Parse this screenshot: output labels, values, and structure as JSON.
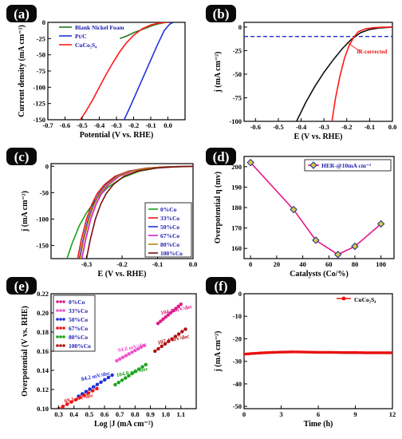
{
  "chart_data": [
    {
      "id": "a",
      "panel_label": "(a)",
      "type": "line",
      "xlabel": "Potential (V vs. RHE)",
      "ylabel": "Current density (mA cm⁻²)",
      "xlim": [
        -0.7,
        0.1
      ],
      "ylim": [
        -150,
        0
      ],
      "xticks": [
        -0.7,
        -0.6,
        -0.5,
        -0.4,
        -0.3,
        -0.2,
        -0.1,
        0.0
      ],
      "xtick_labels": [
        "-0.7",
        "-0.6",
        "-0.5",
        "-0.4",
        "-0.3",
        "-0.2",
        "-0.1",
        "0.0"
      ],
      "yticks": [
        -150,
        -125,
        -100,
        -75,
        -50,
        -25,
        0
      ],
      "ytick_labels": [
        "-150",
        "-125",
        "-100",
        "-75",
        "-50",
        "-25",
        "0"
      ],
      "legend_position": "top-left",
      "series": [
        {
          "name": "Blank Nickel Foam",
          "color": "#1f7a1f",
          "x": [
            -0.28,
            -0.24,
            -0.2,
            -0.16,
            -0.12,
            -0.08,
            -0.05,
            -0.02
          ],
          "y": [
            -25,
            -21,
            -16,
            -12,
            -8,
            -4,
            -2,
            -0.5
          ]
        },
        {
          "name": "Pt/C",
          "color": "#2233dd",
          "x": [
            -0.255,
            -0.22,
            -0.18,
            -0.14,
            -0.1,
            -0.06,
            -0.02,
            0.01,
            0.03
          ],
          "y": [
            -150,
            -130,
            -106,
            -82,
            -58,
            -34,
            -12,
            -3,
            0
          ]
        },
        {
          "name": "CuCo₂S₄",
          "color": "#ff1a1a",
          "x": [
            -0.51,
            -0.48,
            -0.44,
            -0.4,
            -0.36,
            -0.32,
            -0.28,
            -0.24,
            -0.2,
            -0.15,
            -0.1,
            -0.05,
            0.0
          ],
          "y": [
            -150,
            -138,
            -120,
            -100,
            -80,
            -62,
            -45,
            -31,
            -20,
            -10,
            -4,
            -1,
            0
          ]
        }
      ]
    },
    {
      "id": "b",
      "panel_label": "(b)",
      "type": "line",
      "xlabel": "E (V vs. RHE)",
      "ylabel": "j (mA cm⁻²)",
      "xlim": [
        -0.65,
        0.0
      ],
      "ylim": [
        -100,
        5
      ],
      "xticks": [
        -0.6,
        -0.5,
        -0.4,
        -0.3,
        -0.2,
        -0.1,
        0.0
      ],
      "xtick_labels": [
        "-0.6",
        "-0.5",
        "-0.4",
        "-0.3",
        "-0.2",
        "-0.1",
        "0.0"
      ],
      "yticks": [
        -100,
        -75,
        -50,
        -25,
        0
      ],
      "ytick_labels": [
        "-100",
        "-75",
        "-50",
        "-25",
        "0"
      ],
      "reference_line": {
        "y": -10,
        "color": "#1a2fd6"
      },
      "annotation": {
        "text": "iR-corrected",
        "color": "#e81010"
      },
      "series": [
        {
          "color": "#111111",
          "x": [
            -0.42,
            -0.38,
            -0.34,
            -0.3,
            -0.26,
            -0.22,
            -0.18,
            -0.14,
            -0.1,
            -0.06,
            -0.02,
            0.0
          ],
          "y": [
            -100,
            -80,
            -63,
            -48,
            -35,
            -23,
            -13,
            -6,
            -2.5,
            -1,
            -0.3,
            0
          ]
        },
        {
          "color": "#ff1a1a",
          "x": [
            -0.265,
            -0.25,
            -0.23,
            -0.21,
            -0.19,
            -0.17,
            -0.15,
            -0.12,
            -0.08,
            -0.04,
            0.0
          ],
          "y": [
            -100,
            -76,
            -52,
            -33,
            -20,
            -11,
            -5,
            -2,
            -0.6,
            -0.2,
            0
          ]
        }
      ]
    },
    {
      "id": "c",
      "panel_label": "(c)",
      "type": "line",
      "xlabel": "E (V vs. RHE)",
      "ylabel": "j (mA cm⁻²)",
      "xlim": [
        -0.4,
        0.0
      ],
      "ylim": [
        -175,
        5
      ],
      "xticks": [
        -0.3,
        -0.2,
        -0.1,
        0.0
      ],
      "xtick_labels": [
        "-0.3",
        "-0.2",
        "-0.1",
        "0.0"
      ],
      "yticks": [
        -150,
        -100,
        -50,
        0
      ],
      "ytick_labels": [
        "-150",
        "-100",
        "-50",
        "0"
      ],
      "legend_position": "bottom-right",
      "series": [
        {
          "name": "0%Co",
          "color": "#1aa31a",
          "x": [
            -0.355,
            -0.34,
            -0.32,
            -0.3,
            -0.27,
            -0.24,
            -0.2,
            -0.15,
            -0.1,
            -0.05,
            0.0
          ],
          "y": [
            -175,
            -145,
            -112,
            -88,
            -60,
            -40,
            -22,
            -9,
            -3,
            -1,
            0
          ]
        },
        {
          "name": "33%Co",
          "color": "#ee1111",
          "x": [
            -0.325,
            -0.315,
            -0.3,
            -0.285,
            -0.27,
            -0.25,
            -0.22,
            -0.18,
            -0.13,
            -0.08,
            -0.03,
            0.0
          ],
          "y": [
            -175,
            -140,
            -100,
            -72,
            -52,
            -35,
            -19,
            -9,
            -3.5,
            -1.2,
            -0.3,
            0
          ]
        },
        {
          "name": "50%Co",
          "color": "#1f2fd6",
          "x": [
            -0.32,
            -0.31,
            -0.295,
            -0.28,
            -0.265,
            -0.245,
            -0.215,
            -0.175,
            -0.125,
            -0.075,
            -0.025,
            0.0
          ],
          "y": [
            -175,
            -140,
            -100,
            -72,
            -52,
            -35,
            -19,
            -9,
            -3.5,
            -1.2,
            -0.3,
            0
          ]
        },
        {
          "name": "67%Co",
          "color": "#cc22cc",
          "x": [
            -0.313,
            -0.303,
            -0.288,
            -0.273,
            -0.258,
            -0.238,
            -0.208,
            -0.168,
            -0.118,
            -0.068,
            -0.018,
            0.0
          ],
          "y": [
            -175,
            -140,
            -100,
            -72,
            -52,
            -35,
            -19,
            -9,
            -3.5,
            -1.2,
            -0.3,
            0
          ]
        },
        {
          "name": "80%Co",
          "color": "#b8860b",
          "x": [
            -0.318,
            -0.308,
            -0.293,
            -0.278,
            -0.263,
            -0.243,
            -0.213,
            -0.173,
            -0.123,
            -0.073,
            -0.023,
            0.0
          ],
          "y": [
            -175,
            -140,
            -100,
            -72,
            -52,
            -35,
            -19,
            -9,
            -3.5,
            -1.2,
            -0.3,
            0
          ]
        },
        {
          "name": "100%Co",
          "color": "#7a1010",
          "x": [
            -0.3,
            -0.29,
            -0.275,
            -0.26,
            -0.245,
            -0.225,
            -0.195,
            -0.155,
            -0.105,
            -0.055,
            -0.01,
            0.0
          ],
          "y": [
            -175,
            -140,
            -100,
            -72,
            -52,
            -35,
            -19,
            -9,
            -3.5,
            -1.2,
            -0.3,
            0
          ]
        }
      ]
    },
    {
      "id": "d",
      "panel_label": "(d)",
      "type": "line",
      "xlabel": "Catalysts (Co/%)",
      "ylabel": "Overpotential η (mv)",
      "xlim": [
        -5,
        110
      ],
      "ylim": [
        155,
        205
      ],
      "xticks": [
        0,
        20,
        40,
        60,
        80,
        100
      ],
      "xtick_labels": [
        "0",
        "20",
        "40",
        "60",
        "80",
        "100"
      ],
      "yticks": [
        160,
        170,
        180,
        190,
        200
      ],
      "ytick_labels": [
        "160",
        "170",
        "180",
        "190",
        "200"
      ],
      "legend_position": "top-right",
      "series": [
        {
          "name": "HER-@10mA cm⁻²",
          "color": "#e6198a",
          "marker_color": "#1a2a8a",
          "x": [
            0,
            33,
            50,
            67,
            80,
            100
          ],
          "y": [
            202,
            179,
            164,
            157,
            161,
            172
          ]
        }
      ]
    },
    {
      "id": "e",
      "panel_label": "(e)",
      "type": "scatter",
      "xlabel": "Log |J (mA cm⁻²)",
      "ylabel": "Overpotential (V vs. RHE)",
      "xlim": [
        0.25,
        1.2
      ],
      "ylim": [
        0.1,
        0.22
      ],
      "xticks": [
        0.3,
        0.4,
        0.5,
        0.6,
        0.7,
        0.8,
        0.9,
        1.0,
        1.1
      ],
      "xtick_labels": [
        "0.3",
        "0.4",
        "0.5",
        "0.6",
        "0.7",
        "0.8",
        "0.9",
        "1.0",
        "1.1"
      ],
      "yticks": [
        0.1,
        0.12,
        0.14,
        0.16,
        0.18,
        0.2,
        0.22
      ],
      "ytick_labels": [
        "0.10",
        "0.12",
        "0.14",
        "0.16",
        "0.18",
        "0.20",
        "0.22"
      ],
      "legend_position": "top-left",
      "series": [
        {
          "name": "0%Co",
          "color": "#e01a8a",
          "x_range": [
            0.95,
            1.1
          ],
          "y_range": [
            0.189,
            0.209
          ],
          "slope_label": "104.4 mV/dec"
        },
        {
          "name": "33%Co",
          "color": "#ee55cc",
          "x_range": [
            0.68,
            0.86
          ],
          "y_range": [
            0.15,
            0.166
          ],
          "slope_label": "94.8 mV/dec"
        },
        {
          "name": "50%Co",
          "color": "#1f2fd6",
          "x_range": [
            0.43,
            0.65
          ],
          "y_range": [
            0.113,
            0.135
          ],
          "slope_label": "84.2 mV/dec"
        },
        {
          "name": "67%Co",
          "color": "#ee1111",
          "x_range": [
            0.3,
            0.55
          ],
          "y_range": [
            0.1,
            0.121
          ],
          "slope_label": "69.1 mV/dec"
        },
        {
          "name": "80%Co",
          "color": "#1aa31a",
          "x_range": [
            0.67,
            0.87
          ],
          "y_range": [
            0.125,
            0.146
          ],
          "slope_label": "104.8 mV/dec"
        },
        {
          "name": "100%Co",
          "color": "#b01010",
          "x_range": [
            0.93,
            1.13
          ],
          "y_range": [
            0.16,
            0.183
          ],
          "slope_label": "107.4 mV/dec"
        }
      ]
    },
    {
      "id": "f",
      "panel_label": "(f)",
      "type": "line",
      "xlabel": "Time (h)",
      "ylabel": "j (mA cm⁻²)",
      "xlim": [
        0,
        12
      ],
      "ylim": [
        -51,
        0
      ],
      "xticks": [
        0,
        3,
        6,
        9,
        12
      ],
      "xtick_labels": [
        "0",
        "3",
        "6",
        "9",
        "12"
      ],
      "yticks": [
        -50,
        -40,
        -30,
        -20,
        -10,
        0
      ],
      "ytick_labels": [
        "-50",
        "-40",
        "-30",
        "-20",
        "-10",
        "0"
      ],
      "legend_position": "top-right",
      "series": [
        {
          "name": "CuCo₂S₄",
          "color": "#e81010",
          "x": [
            0,
            1,
            2,
            3,
            4,
            5,
            6,
            7,
            8,
            9,
            10,
            11,
            12
          ],
          "y": [
            -26.8,
            -26.4,
            -26.1,
            -25.9,
            -25.8,
            -25.9,
            -26.0,
            -26.0,
            -26.1,
            -26.1,
            -26.2,
            -26.2,
            -26.2
          ]
        }
      ]
    }
  ]
}
